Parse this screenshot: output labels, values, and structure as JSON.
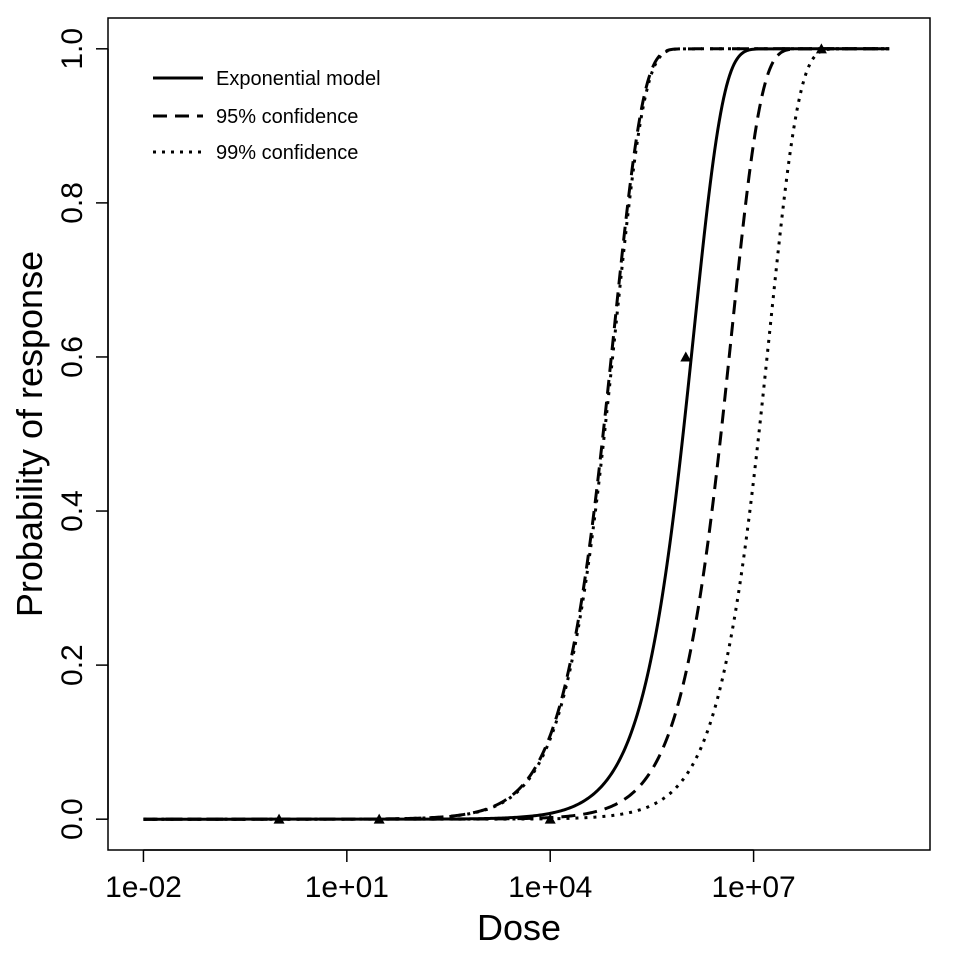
{
  "chart_data": {
    "type": "line",
    "title": "",
    "xlabel": "Dose",
    "ylabel": "Probability of response",
    "x_scale": "log10",
    "xlim": [
      0.003,
      4000000000
    ],
    "ylim": [
      -0.04,
      1.04
    ],
    "x_ticks": [
      {
        "value": 0.01,
        "label": "1e-02"
      },
      {
        "value": 10,
        "label": "1e+01"
      },
      {
        "value": 10000,
        "label": "1e+04"
      },
      {
        "value": 10000000,
        "label": "1e+07"
      }
    ],
    "y_ticks": [
      {
        "value": 0.0,
        "label": "0.0"
      },
      {
        "value": 0.2,
        "label": "0.2"
      },
      {
        "value": 0.4,
        "label": "0.4"
      },
      {
        "value": 0.6,
        "label": "0.6"
      },
      {
        "value": 0.8,
        "label": "0.8"
      },
      {
        "value": 1.0,
        "label": "1.0"
      }
    ],
    "grid": false,
    "legend_position": "top-left",
    "x_range_curves": [
      0.01,
      1000000000
    ],
    "series": [
      {
        "name": "Exponential model",
        "style": "solid",
        "k": 7.6e-07
      },
      {
        "name": "95% confidence",
        "style": "dashed",
        "k": 1.15e-05
      },
      {
        "name": "95% confidence",
        "style": "dashed",
        "k": 2.1e-07
      },
      {
        "name": "99% confidence",
        "style": "dotted",
        "k": 1.1e-05
      },
      {
        "name": "99% confidence",
        "style": "dotted",
        "k": 5.8e-08
      }
    ],
    "observed_points": [
      {
        "x": 1,
        "y": 0.0
      },
      {
        "x": 30,
        "y": 0.0
      },
      {
        "x": 10000,
        "y": 0.0
      },
      {
        "x": 1000000,
        "y": 0.6
      },
      {
        "x": 100000000,
        "y": 1.0
      }
    ]
  },
  "legend": {
    "items": [
      {
        "label": "Exponential model",
        "style": "solid"
      },
      {
        "label": "95% confidence",
        "style": "dashed"
      },
      {
        "label": "99% confidence",
        "style": "dotted"
      }
    ]
  }
}
